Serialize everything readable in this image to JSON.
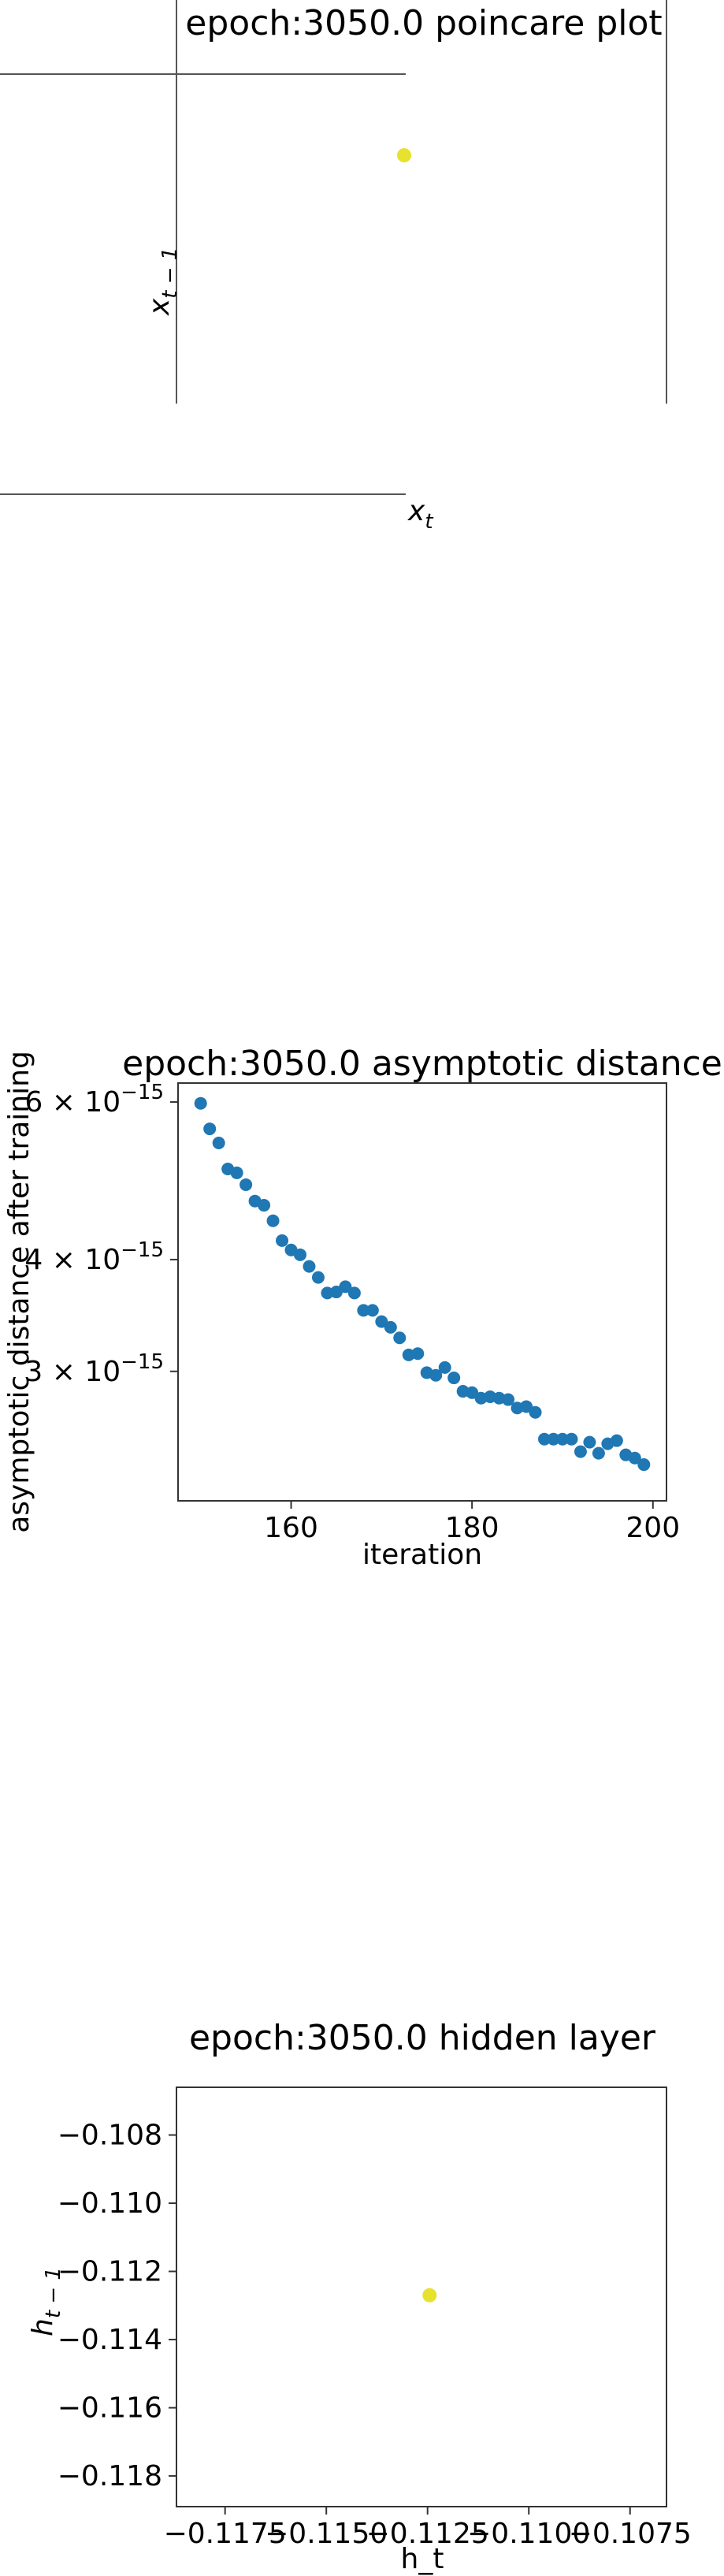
{
  "chart_data": [
    {
      "type": "scatter",
      "title": "epoch:3050.0 poincare plot",
      "xlabel_base": "x",
      "xlabel_sub": "t",
      "ylabel_base": "x",
      "ylabel_sub": "t − 1",
      "point_color": "#e6e22e",
      "points": [
        {
          "x": 0,
          "y": 0
        }
      ],
      "axes_style": "centered spines"
    },
    {
      "type": "scatter",
      "title": "epoch:3050.0 asymptotic distance",
      "xlabel": "iteration",
      "ylabel": "asymptotic distance after training",
      "y_scale": "log",
      "xlim": [
        147.5,
        201.5
      ],
      "ylim": [
        2.15e-15,
        6.3e-15
      ],
      "xticks": [
        160,
        180,
        200
      ],
      "yticks": [
        {
          "value": 6e-15,
          "mantissa": "6",
          "exp": "−15"
        },
        {
          "value": 4e-15,
          "mantissa": "4",
          "exp": "−15"
        },
        {
          "value": 3e-15,
          "mantissa": "3",
          "exp": "−15"
        }
      ],
      "point_color": "#1f77b4",
      "x": [
        150,
        151,
        152,
        153,
        154,
        155,
        156,
        157,
        158,
        159,
        160,
        161,
        162,
        163,
        164,
        165,
        166,
        167,
        168,
        169,
        170,
        171,
        172,
        173,
        174,
        175,
        176,
        177,
        178,
        179,
        180,
        181,
        182,
        183,
        184,
        185,
        186,
        187,
        188,
        189,
        190,
        191,
        192,
        193,
        194,
        195,
        196,
        197,
        198,
        199
      ],
      "y": [
        5.98e-15,
        5.6e-15,
        5.4e-15,
        5.05e-15,
        5e-15,
        4.85e-15,
        4.65e-15,
        4.6e-15,
        4.42e-15,
        4.2e-15,
        4.1e-15,
        4.05e-15,
        3.93e-15,
        3.82e-15,
        3.67e-15,
        3.68e-15,
        3.73e-15,
        3.67e-15,
        3.51e-15,
        3.51e-15,
        3.41e-15,
        3.36e-15,
        3.27e-15,
        3.13e-15,
        3.14e-15,
        2.99e-15,
        2.97e-15,
        3.03e-15,
        2.95e-15,
        2.85e-15,
        2.84e-15,
        2.8e-15,
        2.81e-15,
        2.8e-15,
        2.79e-15,
        2.73e-15,
        2.74e-15,
        2.7e-15,
        2.52e-15,
        2.52e-15,
        2.52e-15,
        2.52e-15,
        2.44e-15,
        2.5e-15,
        2.43e-15,
        2.49e-15,
        2.51e-15,
        2.42e-15,
        2.4e-15,
        2.36e-15
      ]
    },
    {
      "type": "scatter",
      "title": "epoch:3050.0 hidden layer",
      "xlabel": "h_t",
      "ylabel_base": "h",
      "ylabel_sub": "t − 1",
      "xlim": [
        -0.1187,
        -0.1066
      ],
      "ylim": [
        -0.1189,
        -0.1066
      ],
      "xticks": [
        {
          "value": -0.1175,
          "label": "−0.1175"
        },
        {
          "value": -0.115,
          "label": "−0.1150"
        },
        {
          "value": -0.1125,
          "label": "−0.1125"
        },
        {
          "value": -0.11,
          "label": "−0.1100"
        },
        {
          "value": -0.1075,
          "label": "−0.1075"
        }
      ],
      "yticks": [
        {
          "value": -0.108,
          "label": "−0.108"
        },
        {
          "value": -0.11,
          "label": "−0.110"
        },
        {
          "value": -0.112,
          "label": "−0.112"
        },
        {
          "value": -0.114,
          "label": "−0.114"
        },
        {
          "value": -0.116,
          "label": "−0.116"
        },
        {
          "value": -0.118,
          "label": "−0.118"
        }
      ],
      "point_color": "#e6e22e",
      "points": [
        {
          "x": -0.11245,
          "y": -0.1127
        }
      ]
    }
  ]
}
